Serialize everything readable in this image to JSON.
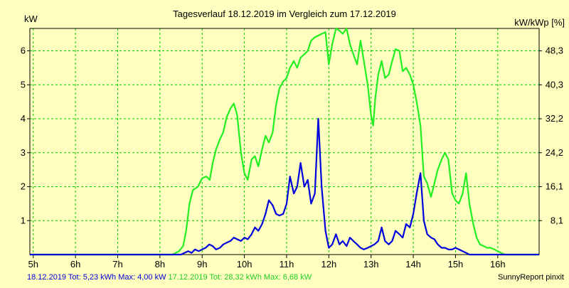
{
  "chart_data": {
    "type": "line",
    "title": "Tagesverlauf 18.12.2019 im Vergleich zum 17.12.2019",
    "ylabel_left": "kW",
    "ylabel_right": "kW/kWp [%]",
    "xlim": [
      4.92,
      16.98
    ],
    "ylim": [
      0,
      6.66
    ],
    "x_ticks": [
      {
        "value": 5,
        "label": "5h"
      },
      {
        "value": 6,
        "label": "6h"
      },
      {
        "value": 7,
        "label": "7h"
      },
      {
        "value": 8,
        "label": "8h"
      },
      {
        "value": 9,
        "label": "9h"
      },
      {
        "value": 10,
        "label": "10h"
      },
      {
        "value": 11,
        "label": "11h"
      },
      {
        "value": 12,
        "label": "12h"
      },
      {
        "value": 13,
        "label": "13h"
      },
      {
        "value": 14,
        "label": "14h"
      },
      {
        "value": 15,
        "label": "15h"
      },
      {
        "value": 16,
        "label": "16h"
      }
    ],
    "y_ticks_left": [
      {
        "value": 1,
        "label": "1"
      },
      {
        "value": 2,
        "label": "2"
      },
      {
        "value": 3,
        "label": "3"
      },
      {
        "value": 4,
        "label": "4"
      },
      {
        "value": 5,
        "label": "5"
      },
      {
        "value": 6,
        "label": "6"
      }
    ],
    "y_ticks_right": [
      {
        "value": 1,
        "label": "8,1"
      },
      {
        "value": 2,
        "label": "16,1"
      },
      {
        "value": 3,
        "label": "24,2"
      },
      {
        "value": 4,
        "label": "32,2"
      },
      {
        "value": 5,
        "label": "40,3"
      },
      {
        "value": 6,
        "label": "48,3"
      }
    ],
    "grid": true,
    "series": [
      {
        "name": "17.12.2019",
        "color": "#22ee22",
        "points": [
          [
            4.92,
            0
          ],
          [
            8.3,
            0
          ],
          [
            8.45,
            0.1
          ],
          [
            8.55,
            0.25
          ],
          [
            8.62,
            0.7
          ],
          [
            8.7,
            1.5
          ],
          [
            8.78,
            1.9
          ],
          [
            8.9,
            2.0
          ],
          [
            9.0,
            2.25
          ],
          [
            9.1,
            2.3
          ],
          [
            9.18,
            2.2
          ],
          [
            9.25,
            2.7
          ],
          [
            9.33,
            3.1
          ],
          [
            9.42,
            3.4
          ],
          [
            9.5,
            3.6
          ],
          [
            9.58,
            4.05
          ],
          [
            9.67,
            4.3
          ],
          [
            9.75,
            4.45
          ],
          [
            9.83,
            4.1
          ],
          [
            9.92,
            3.0
          ],
          [
            10.0,
            2.4
          ],
          [
            10.08,
            2.2
          ],
          [
            10.17,
            2.8
          ],
          [
            10.25,
            2.9
          ],
          [
            10.33,
            2.6
          ],
          [
            10.42,
            3.1
          ],
          [
            10.5,
            3.5
          ],
          [
            10.58,
            3.3
          ],
          [
            10.67,
            3.6
          ],
          [
            10.75,
            4.4
          ],
          [
            10.83,
            4.9
          ],
          [
            10.92,
            5.1
          ],
          [
            11.0,
            5.2
          ],
          [
            11.08,
            5.5
          ],
          [
            11.17,
            5.7
          ],
          [
            11.25,
            5.5
          ],
          [
            11.33,
            5.8
          ],
          [
            11.42,
            5.9
          ],
          [
            11.5,
            6.0
          ],
          [
            11.58,
            6.3
          ],
          [
            11.67,
            6.4
          ],
          [
            11.75,
            6.45
          ],
          [
            11.83,
            6.5
          ],
          [
            11.92,
            6.55
          ],
          [
            12.0,
            5.6
          ],
          [
            12.08,
            6.2
          ],
          [
            12.17,
            6.66
          ],
          [
            12.25,
            6.6
          ],
          [
            12.33,
            6.5
          ],
          [
            12.42,
            6.66
          ],
          [
            12.5,
            6.2
          ],
          [
            12.58,
            5.9
          ],
          [
            12.67,
            5.6
          ],
          [
            12.75,
            6.3
          ],
          [
            12.83,
            5.7
          ],
          [
            12.92,
            5.0
          ],
          [
            13.0,
            4.1
          ],
          [
            13.05,
            3.8
          ],
          [
            13.1,
            4.6
          ],
          [
            13.17,
            5.3
          ],
          [
            13.25,
            5.7
          ],
          [
            13.33,
            5.2
          ],
          [
            13.42,
            5.3
          ],
          [
            13.5,
            5.7
          ],
          [
            13.58,
            6.05
          ],
          [
            13.67,
            6.0
          ],
          [
            13.75,
            5.4
          ],
          [
            13.83,
            5.5
          ],
          [
            13.92,
            5.3
          ],
          [
            14.0,
            5.0
          ],
          [
            14.08,
            4.5
          ],
          [
            14.17,
            3.8
          ],
          [
            14.25,
            2.3
          ],
          [
            14.33,
            2.1
          ],
          [
            14.42,
            1.7
          ],
          [
            14.5,
            2.1
          ],
          [
            14.58,
            2.5
          ],
          [
            14.67,
            2.8
          ],
          [
            14.75,
            3.0
          ],
          [
            14.83,
            2.8
          ],
          [
            14.92,
            1.8
          ],
          [
            15.0,
            1.6
          ],
          [
            15.08,
            1.5
          ],
          [
            15.17,
            1.8
          ],
          [
            15.25,
            2.4
          ],
          [
            15.33,
            1.5
          ],
          [
            15.42,
            0.9
          ],
          [
            15.5,
            0.5
          ],
          [
            15.58,
            0.3
          ],
          [
            15.67,
            0.25
          ],
          [
            15.75,
            0.2
          ],
          [
            15.83,
            0.2
          ],
          [
            15.92,
            0.15
          ],
          [
            16.0,
            0.1
          ],
          [
            16.08,
            0.05
          ],
          [
            16.17,
            0
          ],
          [
            16.98,
            0
          ]
        ]
      },
      {
        "name": "18.12.2019",
        "color": "#0000dd",
        "points": [
          [
            4.92,
            0
          ],
          [
            8.5,
            0
          ],
          [
            8.58,
            0.05
          ],
          [
            8.67,
            0.1
          ],
          [
            8.75,
            0.05
          ],
          [
            8.83,
            0.15
          ],
          [
            8.92,
            0.1
          ],
          [
            9.0,
            0.15
          ],
          [
            9.08,
            0.2
          ],
          [
            9.17,
            0.3
          ],
          [
            9.25,
            0.25
          ],
          [
            9.33,
            0.15
          ],
          [
            9.42,
            0.2
          ],
          [
            9.5,
            0.3
          ],
          [
            9.58,
            0.35
          ],
          [
            9.67,
            0.4
          ],
          [
            9.75,
            0.5
          ],
          [
            9.83,
            0.45
          ],
          [
            9.92,
            0.4
          ],
          [
            10.0,
            0.5
          ],
          [
            10.08,
            0.45
          ],
          [
            10.17,
            0.6
          ],
          [
            10.25,
            0.8
          ],
          [
            10.33,
            0.7
          ],
          [
            10.42,
            0.9
          ],
          [
            10.5,
            1.2
          ],
          [
            10.58,
            1.6
          ],
          [
            10.67,
            1.45
          ],
          [
            10.75,
            1.2
          ],
          [
            10.83,
            1.15
          ],
          [
            10.92,
            1.2
          ],
          [
            11.0,
            1.5
          ],
          [
            11.08,
            2.3
          ],
          [
            11.17,
            1.8
          ],
          [
            11.25,
            2.0
          ],
          [
            11.33,
            2.7
          ],
          [
            11.42,
            2.0
          ],
          [
            11.5,
            2.2
          ],
          [
            11.58,
            1.5
          ],
          [
            11.67,
            1.8
          ],
          [
            11.75,
            4.0
          ],
          [
            11.83,
            2.0
          ],
          [
            11.92,
            0.7
          ],
          [
            12.0,
            0.2
          ],
          [
            12.08,
            0.3
          ],
          [
            12.17,
            0.6
          ],
          [
            12.25,
            0.3
          ],
          [
            12.33,
            0.4
          ],
          [
            12.42,
            0.25
          ],
          [
            12.5,
            0.5
          ],
          [
            12.58,
            0.4
          ],
          [
            12.67,
            0.3
          ],
          [
            12.75,
            0.2
          ],
          [
            12.83,
            0.15
          ],
          [
            12.92,
            0.2
          ],
          [
            13.0,
            0.25
          ],
          [
            13.08,
            0.3
          ],
          [
            13.17,
            0.4
          ],
          [
            13.25,
            0.8
          ],
          [
            13.33,
            0.4
          ],
          [
            13.42,
            0.3
          ],
          [
            13.5,
            0.4
          ],
          [
            13.58,
            0.7
          ],
          [
            13.67,
            0.6
          ],
          [
            13.75,
            0.5
          ],
          [
            13.83,
            0.9
          ],
          [
            13.92,
            0.8
          ],
          [
            14.0,
            1.2
          ],
          [
            14.08,
            1.8
          ],
          [
            14.17,
            2.4
          ],
          [
            14.25,
            1.0
          ],
          [
            14.33,
            0.6
          ],
          [
            14.42,
            0.5
          ],
          [
            14.5,
            0.45
          ],
          [
            14.58,
            0.3
          ],
          [
            14.67,
            0.2
          ],
          [
            14.75,
            0.2
          ],
          [
            14.83,
            0.15
          ],
          [
            14.92,
            0.15
          ],
          [
            15.0,
            0.2
          ],
          [
            15.08,
            0.15
          ],
          [
            15.17,
            0.1
          ],
          [
            15.25,
            0.05
          ],
          [
            15.33,
            0
          ],
          [
            16.98,
            0
          ]
        ]
      }
    ],
    "legend": [
      {
        "text": "18.12.2019 Tot: 5,23 kWh Max: 4,00 kW",
        "color": "#0000dd"
      },
      {
        "text": " 17.12.2019 Tot: 28,32 kWh Max: 6,68 kW",
        "color": "#22cc22"
      }
    ],
    "footer": "SunnyReport pinxit"
  }
}
